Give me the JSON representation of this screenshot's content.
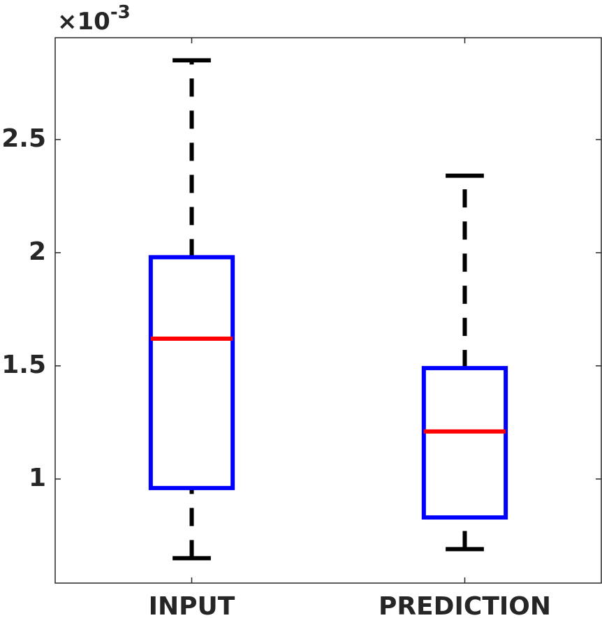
{
  "chart_data": {
    "type": "box",
    "y_multiplier": {
      "base": "×10",
      "exponent": "-3"
    },
    "categories": [
      "INPUT",
      "PREDICTION"
    ],
    "stats": [
      {
        "whisker_low": 0.65,
        "q1": 0.96,
        "median": 1.62,
        "q3": 1.98,
        "whisker_high": 2.85
      },
      {
        "whisker_low": 0.69,
        "q1": 0.83,
        "median": 1.21,
        "q3": 1.49,
        "whisker_high": 2.34
      }
    ],
    "box_color": "#0000ff",
    "median_color": "#ff0000",
    "whisker_color": "#000000",
    "ylim": [
      0.54,
      2.95
    ],
    "yticks": [
      1,
      1.5,
      2,
      2.5
    ]
  }
}
